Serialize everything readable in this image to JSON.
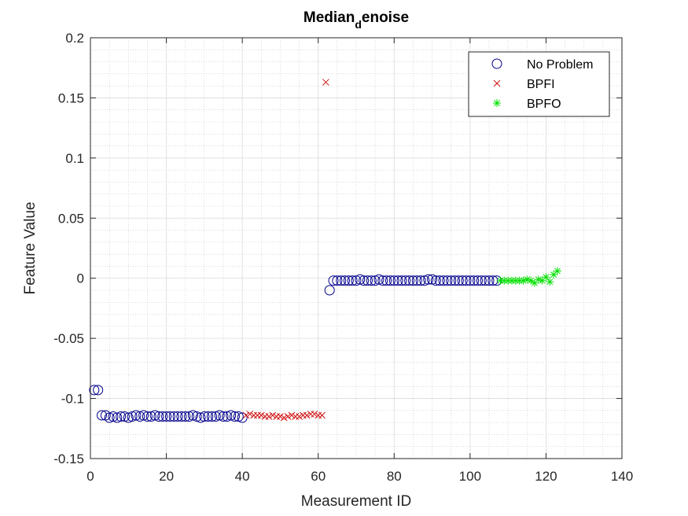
{
  "chart_data": {
    "type": "scatter",
    "title_main": "Median",
    "title_sub": "d",
    "title_rest": "enoise",
    "xlabel": "Measurement ID",
    "ylabel": "Feature Value",
    "xlim": [
      0,
      140
    ],
    "ylim": [
      -0.15,
      0.2
    ],
    "xticks": [
      "0",
      "20",
      "40",
      "60",
      "80",
      "100",
      "120",
      "140"
    ],
    "yticks": [
      "-0.15",
      "-0.1",
      "-0.05",
      "0",
      "0.05",
      "0.1",
      "0.15",
      "0.2"
    ],
    "grid": true,
    "minor_grid": true,
    "legend_position": "top-right",
    "series": [
      {
        "name": "No Problem",
        "marker": "circle",
        "color": "#00008b",
        "points": [
          [
            1,
            -0.093
          ],
          [
            2,
            -0.093
          ],
          [
            3,
            -0.114
          ],
          [
            4,
            -0.114
          ],
          [
            5,
            -0.116
          ],
          [
            6,
            -0.115
          ],
          [
            7,
            -0.116
          ],
          [
            8,
            -0.115
          ],
          [
            9,
            -0.115
          ],
          [
            10,
            -0.116
          ],
          [
            11,
            -0.115
          ],
          [
            12,
            -0.114
          ],
          [
            13,
            -0.115
          ],
          [
            14,
            -0.114
          ],
          [
            15,
            -0.115
          ],
          [
            16,
            -0.115
          ],
          [
            17,
            -0.114
          ],
          [
            18,
            -0.115
          ],
          [
            19,
            -0.115
          ],
          [
            20,
            -0.115
          ],
          [
            21,
            -0.115
          ],
          [
            22,
            -0.115
          ],
          [
            23,
            -0.115
          ],
          [
            24,
            -0.115
          ],
          [
            25,
            -0.115
          ],
          [
            26,
            -0.115
          ],
          [
            27,
            -0.114
          ],
          [
            28,
            -0.115
          ],
          [
            29,
            -0.116
          ],
          [
            30,
            -0.115
          ],
          [
            31,
            -0.115
          ],
          [
            32,
            -0.115
          ],
          [
            33,
            -0.115
          ],
          [
            34,
            -0.114
          ],
          [
            35,
            -0.115
          ],
          [
            36,
            -0.115
          ],
          [
            37,
            -0.114
          ],
          [
            38,
            -0.115
          ],
          [
            39,
            -0.115
          ],
          [
            40,
            -0.116
          ],
          [
            63,
            -0.01
          ],
          [
            64,
            -0.002
          ],
          [
            65,
            -0.002
          ],
          [
            66,
            -0.002
          ],
          [
            67,
            -0.002
          ],
          [
            68,
            -0.002
          ],
          [
            69,
            -0.002
          ],
          [
            70,
            -0.002
          ],
          [
            71,
            -0.001
          ],
          [
            72,
            -0.002
          ],
          [
            73,
            -0.002
          ],
          [
            74,
            -0.002
          ],
          [
            75,
            -0.002
          ],
          [
            76,
            -0.001
          ],
          [
            77,
            -0.002
          ],
          [
            78,
            -0.002
          ],
          [
            79,
            -0.002
          ],
          [
            80,
            -0.002
          ],
          [
            81,
            -0.002
          ],
          [
            82,
            -0.002
          ],
          [
            83,
            -0.002
          ],
          [
            84,
            -0.002
          ],
          [
            85,
            -0.002
          ],
          [
            86,
            -0.002
          ],
          [
            87,
            -0.002
          ],
          [
            88,
            -0.002
          ],
          [
            89,
            -0.001
          ],
          [
            90,
            -0.001
          ],
          [
            91,
            -0.002
          ],
          [
            92,
            -0.002
          ],
          [
            93,
            -0.002
          ],
          [
            94,
            -0.002
          ],
          [
            95,
            -0.002
          ],
          [
            96,
            -0.002
          ],
          [
            97,
            -0.002
          ],
          [
            98,
            -0.002
          ],
          [
            99,
            -0.002
          ],
          [
            100,
            -0.002
          ],
          [
            101,
            -0.002
          ],
          [
            102,
            -0.002
          ],
          [
            103,
            -0.002
          ],
          [
            104,
            -0.002
          ],
          [
            105,
            -0.002
          ],
          [
            106,
            -0.002
          ],
          [
            107,
            -0.002
          ]
        ]
      },
      {
        "name": "BPFI",
        "marker": "x",
        "color": "#d01010",
        "points": [
          [
            41,
            -0.114
          ],
          [
            42,
            -0.113
          ],
          [
            43,
            -0.114
          ],
          [
            44,
            -0.114
          ],
          [
            45,
            -0.114
          ],
          [
            46,
            -0.115
          ],
          [
            47,
            -0.115
          ],
          [
            48,
            -0.114
          ],
          [
            49,
            -0.115
          ],
          [
            50,
            -0.115
          ],
          [
            51,
            -0.116
          ],
          [
            52,
            -0.115
          ],
          [
            53,
            -0.114
          ],
          [
            54,
            -0.115
          ],
          [
            55,
            -0.115
          ],
          [
            56,
            -0.114
          ],
          [
            57,
            -0.114
          ],
          [
            58,
            -0.113
          ],
          [
            59,
            -0.113
          ],
          [
            60,
            -0.114
          ],
          [
            61,
            -0.114
          ],
          [
            62,
            0.163
          ]
        ]
      },
      {
        "name": "BPFO",
        "marker": "asterisk",
        "color": "#00e000",
        "points": [
          [
            108,
            -0.002
          ],
          [
            109,
            -0.002
          ],
          [
            110,
            -0.002
          ],
          [
            111,
            -0.002
          ],
          [
            112,
            -0.002
          ],
          [
            113,
            -0.002
          ],
          [
            114,
            -0.002
          ],
          [
            115,
            -0.001
          ],
          [
            116,
            -0.002
          ],
          [
            117,
            -0.004
          ],
          [
            118,
            -0.001
          ],
          [
            119,
            -0.002
          ],
          [
            120,
            0.001
          ],
          [
            121,
            -0.003
          ],
          [
            122,
            0.003
          ],
          [
            123,
            0.006
          ]
        ]
      }
    ]
  }
}
